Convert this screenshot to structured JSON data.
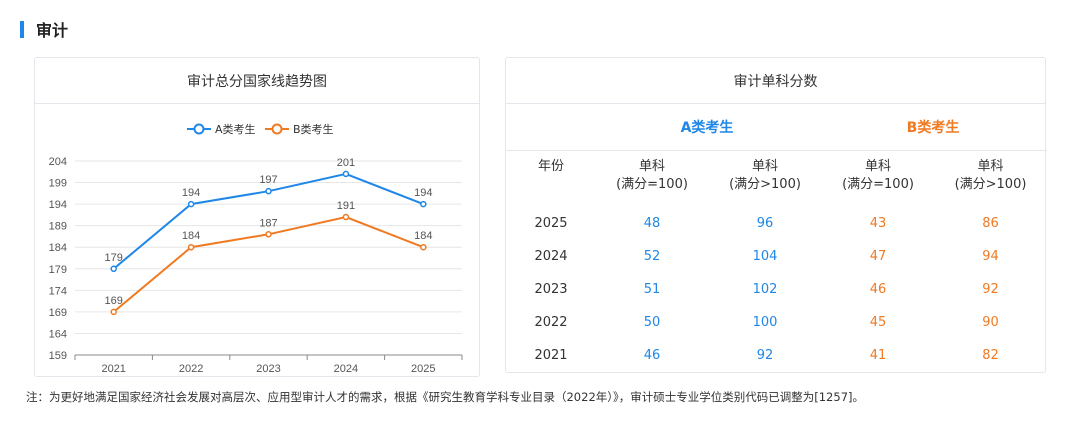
{
  "section": {
    "title": "审计"
  },
  "chart_card": {
    "title": "审计总分国家线趋势图"
  },
  "chart_data": {
    "type": "line",
    "title": "审计总分国家线趋势图",
    "categories": [
      "2021",
      "2022",
      "2023",
      "2024",
      "2025"
    ],
    "series": [
      {
        "name": "A类考生",
        "color": "#1f87e8",
        "values": [
          179,
          194,
          197,
          201,
          194
        ]
      },
      {
        "name": "B类考生",
        "color": "#f07a22",
        "values": [
          169,
          184,
          187,
          191,
          184
        ]
      }
    ],
    "yticks": [
      "204",
      "199",
      "194",
      "189",
      "184",
      "179",
      "174",
      "169",
      "164",
      "159"
    ],
    "ylim": [
      159,
      204
    ],
    "xlabel": "",
    "ylabel": "",
    "grid": true,
    "legend": "top-center"
  },
  "table_card": {
    "title": "审计单科分数",
    "group_a": "A类考生",
    "group_b": "B类考生",
    "headers": [
      "年份",
      "单科\n(满分=100)",
      "单科\n(满分>100)",
      "单科\n(满分=100)",
      "单科\n(满分>100)"
    ],
    "rows": [
      [
        "2025",
        "48",
        "96",
        "43",
        "86"
      ],
      [
        "2024",
        "52",
        "104",
        "47",
        "94"
      ],
      [
        "2023",
        "51",
        "102",
        "46",
        "92"
      ],
      [
        "2022",
        "50",
        "100",
        "45",
        "90"
      ],
      [
        "2021",
        "46",
        "92",
        "41",
        "82"
      ]
    ],
    "colors": {
      "a": "#1f87e8",
      "b": "#f07a22"
    }
  },
  "note": "注：为更好地满足国家经济社会发展对高层次、应用型审计人才的需求，根据《研究生教育学科专业目录（2022年）》，审计硕士专业学位类别代码已调整为[1257]。"
}
